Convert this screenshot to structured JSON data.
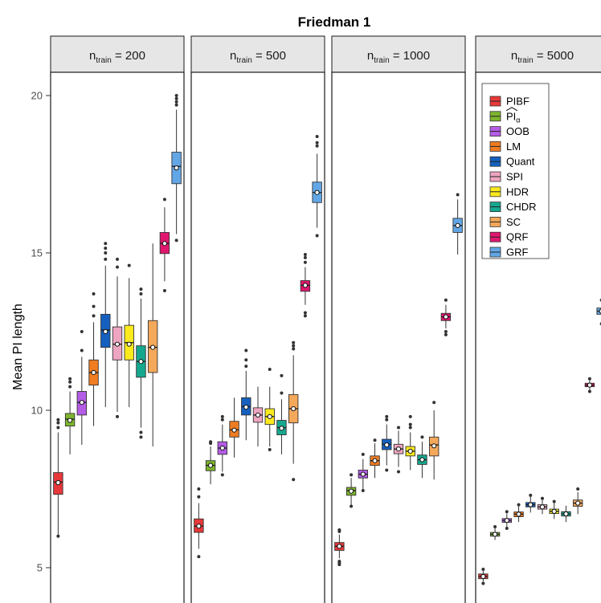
{
  "chart_data": {
    "type": "boxplot",
    "title": "Friedman 1",
    "ylabel": "Mean PI length",
    "ylim": [
      4.3,
      20.8
    ],
    "yticks": [
      5,
      10,
      15,
      20
    ],
    "legend": {
      "position": "top-right",
      "panel": 4
    },
    "methods": [
      {
        "key": "PIBF",
        "label": "PIBF",
        "color": "#e8383a"
      },
      {
        "key": "PIa",
        "label": "PI",
        "sub": "α",
        "hat": true,
        "color": "#7eb52e"
      },
      {
        "key": "OOB",
        "label": "OOB",
        "color": "#b55ce6"
      },
      {
        "key": "LM",
        "label": "LM",
        "color": "#f07d22"
      },
      {
        "key": "Quant",
        "label": "Quant",
        "color": "#1560bf"
      },
      {
        "key": "SPI",
        "label": "SPI",
        "color": "#eea5c1"
      },
      {
        "key": "HDR",
        "label": "HDR",
        "color": "#fbea1d"
      },
      {
        "key": "CHDR",
        "label": "CHDR",
        "color": "#16a88f"
      },
      {
        "key": "SC",
        "label": "SC",
        "color": "#f4a85a"
      },
      {
        "key": "QRF",
        "label": "QRF",
        "color": "#e0176f"
      },
      {
        "key": "GRF",
        "label": "GRF",
        "color": "#62a6e6"
      }
    ],
    "panels": [
      {
        "label": "n",
        "sub": "train",
        "value": "= 200",
        "boxes": [
          {
            "q1": 7.33,
            "median": 7.72,
            "q3": 8.02,
            "wlo": 6.05,
            "whi": 9.3,
            "mean": 7.7,
            "outliers": [
              6.0,
              9.45,
              9.6,
              9.7
            ]
          },
          {
            "q1": 9.5,
            "median": 9.72,
            "q3": 9.9,
            "wlo": 8.6,
            "whi": 10.6,
            "mean": 9.68,
            "outliers": [
              10.75,
              10.9,
              11.0
            ]
          },
          {
            "q1": 9.85,
            "median": 10.25,
            "q3": 10.6,
            "wlo": 8.9,
            "whi": 11.7,
            "mean": 10.25,
            "outliers": [
              11.9,
              12.5
            ]
          },
          {
            "q1": 10.8,
            "median": 11.2,
            "q3": 11.6,
            "wlo": 9.5,
            "whi": 12.8,
            "mean": 11.2,
            "outliers": [
              13.0,
              13.3,
              13.7
            ]
          },
          {
            "q1": 12.0,
            "median": 12.55,
            "q3": 13.05,
            "wlo": 10.1,
            "whi": 14.6,
            "mean": 12.5,
            "outliers": [
              14.8,
              15.0,
              15.15,
              15.3
            ]
          },
          {
            "q1": 11.6,
            "median": 12.1,
            "q3": 12.65,
            "wlo": 9.95,
            "whi": 14.25,
            "mean": 12.1,
            "outliers": [
              9.8,
              14.55,
              14.8
            ]
          },
          {
            "q1": 11.6,
            "median": 12.15,
            "q3": 12.7,
            "wlo": 10.1,
            "whi": 14.2,
            "mean": 12.1,
            "outliers": [
              14.6
            ]
          },
          {
            "q1": 11.05,
            "median": 11.55,
            "q3": 12.05,
            "wlo": 9.45,
            "whi": 13.55,
            "mean": 11.55,
            "outliers": [
              9.15,
              9.3,
              13.7,
              13.85
            ]
          },
          {
            "q1": 11.2,
            "median": 12.0,
            "q3": 12.85,
            "wlo": 8.85,
            "whi": 15.3,
            "mean": 12.0,
            "outliers": []
          },
          {
            "q1": 14.98,
            "median": 15.3,
            "q3": 15.65,
            "wlo": 14.1,
            "whi": 16.45,
            "mean": 15.3,
            "outliers": [
              13.8,
              16.7
            ]
          },
          {
            "q1": 17.2,
            "median": 17.75,
            "q3": 18.2,
            "wlo": 15.6,
            "whi": 19.55,
            "mean": 17.7,
            "outliers": [
              15.4,
              19.7,
              19.8,
              19.9,
              20.0
            ]
          }
        ]
      },
      {
        "label": "n",
        "sub": "train",
        "value": "= 500",
        "boxes": [
          {
            "q1": 6.12,
            "median": 6.32,
            "q3": 6.55,
            "wlo": 5.6,
            "whi": 7.05,
            "mean": 6.32,
            "outliers": [
              5.35,
              7.25,
              7.5
            ]
          },
          {
            "q1": 8.08,
            "median": 8.25,
            "q3": 8.4,
            "wlo": 7.65,
            "whi": 8.85,
            "mean": 8.25,
            "outliers": [
              8.95,
              9.0
            ]
          },
          {
            "q1": 8.6,
            "median": 8.8,
            "q3": 9.0,
            "wlo": 8.05,
            "whi": 9.55,
            "mean": 8.8,
            "outliers": [
              7.95,
              9.7,
              9.8
            ]
          },
          {
            "q1": 9.15,
            "median": 9.38,
            "q3": 9.65,
            "wlo": 8.5,
            "whi": 10.4,
            "mean": 9.37,
            "outliers": []
          },
          {
            "q1": 9.85,
            "median": 10.12,
            "q3": 10.4,
            "wlo": 9.05,
            "whi": 11.25,
            "mean": 10.1,
            "outliers": [
              11.4,
              11.6,
              11.9
            ]
          },
          {
            "q1": 9.62,
            "median": 9.85,
            "q3": 10.08,
            "wlo": 8.85,
            "whi": 10.75,
            "mean": 9.85,
            "outliers": []
          },
          {
            "q1": 9.55,
            "median": 9.8,
            "q3": 10.05,
            "wlo": 8.85,
            "whi": 10.75,
            "mean": 9.8,
            "outliers": [
              8.75,
              11.3
            ]
          },
          {
            "q1": 9.22,
            "median": 9.45,
            "q3": 9.68,
            "wlo": 8.6,
            "whi": 10.35,
            "mean": 9.43,
            "outliers": [
              10.55,
              11.1
            ]
          },
          {
            "q1": 9.6,
            "median": 10.05,
            "q3": 10.5,
            "wlo": 8.3,
            "whi": 11.75,
            "mean": 10.05,
            "outliers": [
              7.8,
              11.95,
              12.05,
              12.15
            ]
          },
          {
            "q1": 13.78,
            "median": 13.97,
            "q3": 14.12,
            "wlo": 13.35,
            "whi": 14.55,
            "mean": 13.97,
            "outliers": [
              13.1,
              13.0,
              14.7,
              14.85,
              14.95
            ]
          },
          {
            "q1": 16.6,
            "median": 16.92,
            "q3": 17.25,
            "wlo": 15.8,
            "whi": 18.15,
            "mean": 16.92,
            "outliers": [
              15.55,
              18.4,
              18.5,
              18.7
            ]
          }
        ]
      },
      {
        "label": "n",
        "sub": "train",
        "value": "= 1000",
        "boxes": [
          {
            "q1": 5.55,
            "median": 5.68,
            "q3": 5.8,
            "wlo": 5.3,
            "whi": 6.05,
            "mean": 5.68,
            "outliers": [
              5.1,
              5.15,
              5.2,
              6.15,
              6.2
            ]
          },
          {
            "q1": 7.3,
            "median": 7.45,
            "q3": 7.55,
            "wlo": 7.0,
            "whi": 7.85,
            "mean": 7.43,
            "outliers": [
              6.95,
              7.95
            ]
          },
          {
            "q1": 7.85,
            "median": 7.97,
            "q3": 8.1,
            "wlo": 7.5,
            "whi": 8.45,
            "mean": 7.97,
            "outliers": [
              7.45,
              8.6
            ]
          },
          {
            "q1": 8.25,
            "median": 8.4,
            "q3": 8.55,
            "wlo": 7.85,
            "whi": 8.95,
            "mean": 8.4,
            "outliers": [
              9.05
            ]
          },
          {
            "q1": 8.75,
            "median": 8.92,
            "q3": 9.08,
            "wlo": 8.25,
            "whi": 9.55,
            "mean": 8.9,
            "outliers": [
              8.1,
              9.7,
              9.8
            ]
          },
          {
            "q1": 8.62,
            "median": 8.77,
            "q3": 8.92,
            "wlo": 8.2,
            "whi": 9.35,
            "mean": 8.77,
            "outliers": [
              8.05,
              9.45
            ]
          },
          {
            "q1": 8.55,
            "median": 8.7,
            "q3": 8.85,
            "wlo": 8.1,
            "whi": 9.3,
            "mean": 8.7,
            "outliers": [
              9.45,
              9.55,
              9.8
            ]
          },
          {
            "q1": 8.28,
            "median": 8.43,
            "q3": 8.58,
            "wlo": 7.85,
            "whi": 9.0,
            "mean": 8.43,
            "outliers": [
              9.15
            ]
          },
          {
            "q1": 8.55,
            "median": 8.9,
            "q3": 9.15,
            "wlo": 7.8,
            "whi": 10.0,
            "mean": 8.87,
            "outliers": [
              10.25
            ]
          },
          {
            "q1": 12.85,
            "median": 12.97,
            "q3": 13.08,
            "wlo": 12.6,
            "whi": 13.35,
            "mean": 12.97,
            "outliers": [
              12.4,
              12.5,
              13.5
            ]
          },
          {
            "q1": 15.65,
            "median": 15.87,
            "q3": 16.1,
            "wlo": 14.95,
            "whi": 16.7,
            "mean": 15.87,
            "outliers": [
              16.85
            ]
          }
        ]
      },
      {
        "label": "n",
        "sub": "train",
        "value": "= 5000",
        "boxes": [
          {
            "q1": 4.65,
            "median": 4.72,
            "q3": 4.8,
            "wlo": 4.55,
            "whi": 4.9,
            "mean": 4.72,
            "outliers": [
              4.5,
              4.95
            ]
          },
          {
            "q1": 6.0,
            "median": 6.06,
            "q3": 6.12,
            "wlo": 5.88,
            "whi": 6.25,
            "mean": 6.06,
            "outliers": [
              6.3
            ]
          },
          {
            "q1": 6.44,
            "median": 6.5,
            "q3": 6.56,
            "wlo": 6.3,
            "whi": 6.72,
            "mean": 6.5,
            "outliers": [
              6.25,
              6.78
            ]
          },
          {
            "q1": 6.62,
            "median": 6.7,
            "q3": 6.77,
            "wlo": 6.45,
            "whi": 6.95,
            "mean": 6.7,
            "outliers": [
              7.0
            ]
          },
          {
            "q1": 6.93,
            "median": 7.0,
            "q3": 7.07,
            "wlo": 6.75,
            "whi": 7.25,
            "mean": 7.0,
            "outliers": [
              7.3
            ]
          },
          {
            "q1": 6.86,
            "median": 6.93,
            "q3": 7.0,
            "wlo": 6.7,
            "whi": 7.15,
            "mean": 6.93,
            "outliers": [
              7.2
            ]
          },
          {
            "q1": 6.72,
            "median": 6.79,
            "q3": 6.86,
            "wlo": 6.55,
            "whi": 7.05,
            "mean": 6.79,
            "outliers": [
              7.1
            ]
          },
          {
            "q1": 6.64,
            "median": 6.71,
            "q3": 6.78,
            "wlo": 6.45,
            "whi": 6.97,
            "mean": 6.71,
            "outliers": []
          },
          {
            "q1": 6.95,
            "median": 7.05,
            "q3": 7.15,
            "wlo": 6.7,
            "whi": 7.4,
            "mean": 7.05,
            "outliers": [
              7.5
            ]
          },
          {
            "q1": 10.75,
            "median": 10.8,
            "q3": 10.86,
            "wlo": 10.65,
            "whi": 10.95,
            "mean": 10.8,
            "outliers": [
              10.6,
              11.0
            ]
          },
          {
            "q1": 13.05,
            "median": 13.15,
            "q3": 13.25,
            "wlo": 12.85,
            "whi": 13.4,
            "mean": 13.15,
            "outliers": [
              12.75,
              13.5
            ]
          }
        ]
      }
    ]
  }
}
